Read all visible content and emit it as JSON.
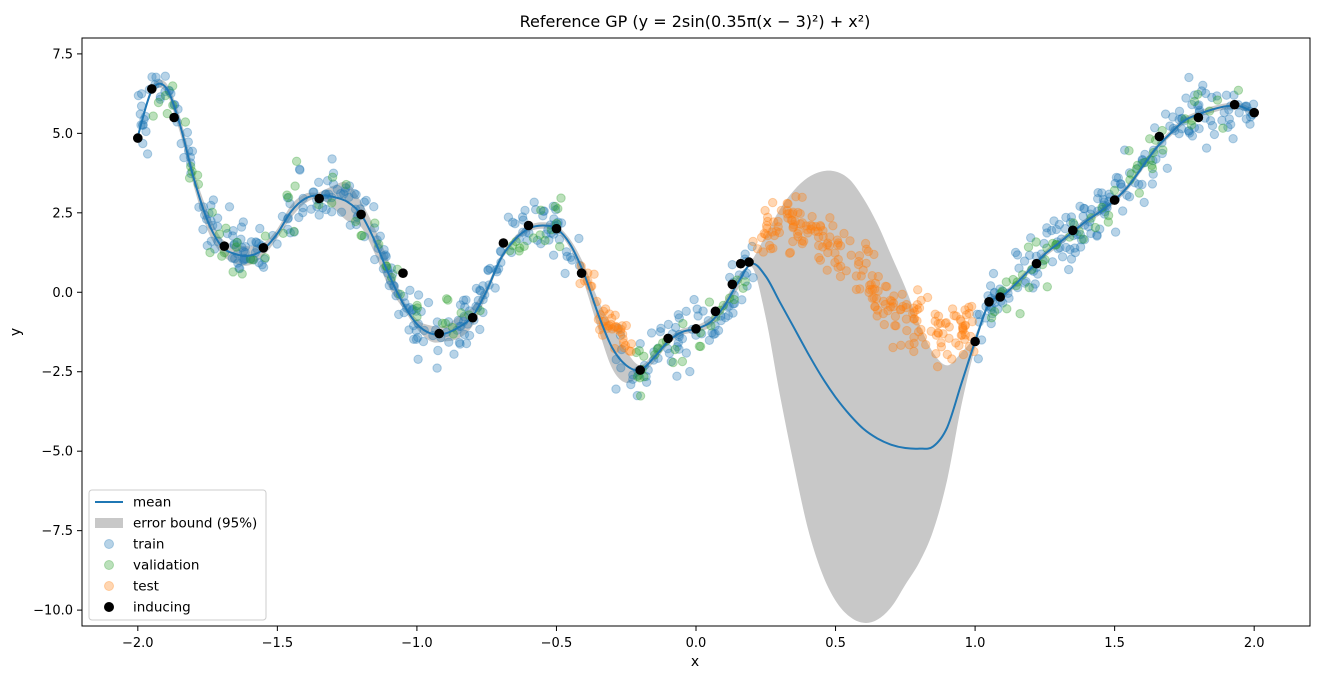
{
  "chart_data": {
    "type": "scatter",
    "title": "Reference GP (y = 2sin(0.35π(x − 3)²) + x²)",
    "xlabel": "x",
    "ylabel": "y",
    "xlim": [
      -2.2,
      2.2
    ],
    "ylim": [
      -10.5,
      8.0
    ],
    "x_ticks": [
      -2.0,
      -1.5,
      -1.0,
      -0.5,
      0.0,
      0.5,
      1.0,
      1.5,
      2.0
    ],
    "x_tick_labels": [
      "−2.0",
      "−1.5",
      "−1.0",
      "−0.5",
      "0.0",
      "0.5",
      "1.0",
      "1.5",
      "2.0"
    ],
    "y_ticks": [
      -10.0,
      -7.5,
      -5.0,
      -2.5,
      0.0,
      2.5,
      5.0,
      7.5
    ],
    "y_tick_labels": [
      "−10.0",
      "−7.5",
      "−5.0",
      "−2.5",
      "0.0",
      "2.5",
      "5.0",
      "7.5"
    ],
    "grid": false,
    "legend_position": "lower-left",
    "colors": {
      "mean": "#1f77b4",
      "band": "#c8c8c8",
      "train": "#1f77b4",
      "validation": "#2ca02c",
      "test": "#ff7f0e",
      "inducing": "#000000"
    },
    "legend": [
      {
        "label": "mean",
        "kind": "line",
        "color": "#1f77b4"
      },
      {
        "label": "error bound (95%)",
        "kind": "patch",
        "color": "#c8c8c8"
      },
      {
        "label": "train",
        "kind": "dot",
        "color": "#1f77b4"
      },
      {
        "label": "validation",
        "kind": "dot",
        "color": "#2ca02c"
      },
      {
        "label": "test",
        "kind": "dot",
        "color": "#ff7f0e"
      },
      {
        "label": "inducing",
        "kind": "dot",
        "color": "#000000"
      }
    ],
    "series": [
      {
        "name": "mean",
        "type": "line",
        "x": [
          -2.0,
          -1.95,
          -1.9,
          -1.85,
          -1.8,
          -1.75,
          -1.7,
          -1.65,
          -1.6,
          -1.55,
          -1.5,
          -1.45,
          -1.4,
          -1.35,
          -1.3,
          -1.25,
          -1.2,
          -1.15,
          -1.1,
          -1.05,
          -1.0,
          -0.95,
          -0.9,
          -0.85,
          -0.8,
          -0.75,
          -0.7,
          -0.65,
          -0.6,
          -0.55,
          -0.5,
          -0.45,
          -0.4,
          -0.35,
          -0.3,
          -0.25,
          -0.2,
          -0.15,
          -0.1,
          -0.05,
          0.0,
          0.05,
          0.1,
          0.15,
          0.2,
          0.25,
          0.3,
          0.35,
          0.4,
          0.45,
          0.5,
          0.55,
          0.6,
          0.65,
          0.7,
          0.75,
          0.8,
          0.85,
          0.9,
          0.95,
          1.0,
          1.05,
          1.1,
          1.15,
          1.2,
          1.25,
          1.3,
          1.35,
          1.4,
          1.45,
          1.5,
          1.55,
          1.6,
          1.65,
          1.7,
          1.75,
          1.8,
          1.85,
          1.9,
          1.95,
          2.0
        ],
        "y": [
          4.9,
          6.35,
          6.45,
          5.3,
          3.6,
          2.25,
          1.45,
          1.2,
          1.15,
          1.35,
          1.85,
          2.55,
          2.95,
          3.05,
          3.0,
          2.85,
          2.45,
          1.6,
          0.55,
          -0.35,
          -1.0,
          -1.3,
          -1.3,
          -1.1,
          -0.75,
          0.05,
          1.05,
          1.65,
          2.0,
          2.1,
          2.0,
          1.5,
          0.55,
          -0.7,
          -1.75,
          -2.3,
          -2.45,
          -2.05,
          -1.55,
          -1.25,
          -1.15,
          -0.95,
          -0.45,
          0.3,
          0.9,
          0.5,
          -0.3,
          -1.1,
          -1.9,
          -2.65,
          -3.3,
          -3.85,
          -4.3,
          -4.6,
          -4.8,
          -4.9,
          -4.92,
          -4.85,
          -4.25,
          -2.9,
          -1.55,
          -0.35,
          -0.1,
          0.3,
          0.75,
          1.2,
          1.55,
          1.9,
          2.25,
          2.55,
          2.9,
          3.35,
          3.95,
          4.55,
          5.0,
          5.4,
          5.6,
          5.75,
          5.85,
          5.85,
          5.65
        ]
      },
      {
        "name": "error bound (95%)",
        "type": "area",
        "x": [
          -2.0,
          -1.95,
          -1.9,
          -1.85,
          -1.8,
          -1.75,
          -1.7,
          -1.65,
          -1.6,
          -1.55,
          -1.5,
          -1.45,
          -1.4,
          -1.35,
          -1.3,
          -1.25,
          -1.2,
          -1.15,
          -1.1,
          -1.05,
          -1.0,
          -0.95,
          -0.9,
          -0.85,
          -0.8,
          -0.75,
          -0.7,
          -0.65,
          -0.6,
          -0.55,
          -0.5,
          -0.45,
          -0.4,
          -0.35,
          -0.3,
          -0.25,
          -0.2,
          -0.15,
          -0.1,
          -0.05,
          0.0,
          0.05,
          0.1,
          0.15,
          0.2,
          0.25,
          0.3,
          0.35,
          0.4,
          0.45,
          0.5,
          0.55,
          0.6,
          0.65,
          0.7,
          0.75,
          0.8,
          0.85,
          0.9,
          0.95,
          1.0,
          1.05,
          1.1,
          1.15,
          1.2,
          1.25,
          1.3,
          1.35,
          1.4,
          1.45,
          1.5,
          1.55,
          1.6,
          1.65,
          1.7,
          1.75,
          1.8,
          1.85,
          1.9,
          1.95,
          2.0
        ],
        "upper": [
          4.95,
          6.45,
          6.6,
          5.55,
          3.85,
          2.55,
          1.7,
          1.5,
          1.45,
          1.55,
          2.0,
          2.75,
          3.1,
          3.15,
          3.35,
          3.45,
          2.85,
          2.0,
          0.95,
          -0.2,
          -0.85,
          -1.05,
          -1.05,
          -0.75,
          -0.45,
          0.2,
          1.15,
          1.75,
          2.1,
          2.2,
          2.1,
          1.65,
          0.85,
          -0.25,
          -1.1,
          -1.85,
          -2.3,
          -1.9,
          -1.45,
          -1.15,
          -1.05,
          -0.8,
          -0.3,
          0.5,
          1.0,
          1.8,
          2.6,
          3.2,
          3.6,
          3.8,
          3.8,
          3.55,
          2.95,
          2.15,
          1.15,
          0.15,
          -1.0,
          -1.9,
          -2.3,
          -1.9,
          -1.35,
          -0.25,
          0.0,
          0.4,
          0.85,
          1.3,
          1.65,
          2.0,
          2.35,
          2.65,
          3.0,
          3.45,
          4.05,
          4.65,
          5.1,
          5.5,
          5.7,
          5.85,
          5.95,
          5.95,
          5.75
        ],
        "lower": [
          4.85,
          6.25,
          6.3,
          5.05,
          3.35,
          1.95,
          1.2,
          0.9,
          0.85,
          1.15,
          1.7,
          2.35,
          2.8,
          2.95,
          2.65,
          2.25,
          2.05,
          1.2,
          0.15,
          -0.5,
          -1.15,
          -1.55,
          -1.55,
          -1.45,
          -1.05,
          -0.1,
          0.95,
          1.55,
          1.9,
          2.0,
          1.9,
          1.35,
          0.25,
          -1.15,
          -2.4,
          -2.85,
          -2.6,
          -2.2,
          -1.65,
          -1.35,
          -1.25,
          -1.1,
          -0.6,
          0.1,
          0.8,
          -0.8,
          -3.2,
          -5.4,
          -7.4,
          -8.8,
          -9.7,
          -10.2,
          -10.4,
          -10.3,
          -9.9,
          -9.2,
          -8.5,
          -7.5,
          -5.9,
          -3.6,
          -1.75,
          -0.45,
          -0.2,
          0.2,
          0.65,
          1.1,
          1.45,
          1.8,
          2.15,
          2.45,
          2.8,
          3.25,
          3.85,
          4.45,
          4.9,
          5.3,
          5.5,
          5.65,
          5.75,
          5.75,
          5.55
        ]
      },
      {
        "name": "inducing",
        "type": "scatter",
        "x": [
          -2.0,
          -1.95,
          -1.87,
          -1.69,
          -1.55,
          -1.35,
          -1.2,
          -1.05,
          -0.92,
          -0.8,
          -0.69,
          -0.6,
          -0.5,
          -0.41,
          -0.2,
          -0.1,
          0.0,
          0.07,
          0.13,
          0.16,
          0.19,
          1.0,
          1.05,
          1.09,
          1.22,
          1.35,
          1.5,
          1.66,
          1.8,
          1.93,
          2.0
        ],
        "y": [
          4.85,
          6.4,
          5.5,
          1.45,
          1.4,
          2.95,
          2.45,
          0.6,
          -1.3,
          -0.8,
          1.55,
          2.1,
          2.0,
          0.6,
          -2.45,
          -1.45,
          -1.15,
          -0.6,
          0.25,
          0.9,
          0.95,
          -1.55,
          -0.3,
          -0.15,
          0.9,
          1.95,
          2.9,
          4.9,
          5.5,
          5.9,
          5.65
        ]
      }
    ],
    "scatter_noise": {
      "train_sigma": 0.45,
      "validation_sigma": 0.45,
      "test_sigma": 0.45,
      "train_x_ranges": [
        [
          -2.0,
          -0.4
        ],
        [
          -0.3,
          0.21
        ],
        [
          1.0,
          2.0
        ]
      ],
      "validation_x_ranges": [
        [
          -1.95,
          -0.45
        ],
        [
          -0.25,
          0.2
        ],
        [
          1.05,
          1.95
        ]
      ],
      "test_x_ranges": [
        [
          -0.42,
          -0.22
        ],
        [
          0.2,
          1.0
        ]
      ]
    }
  }
}
